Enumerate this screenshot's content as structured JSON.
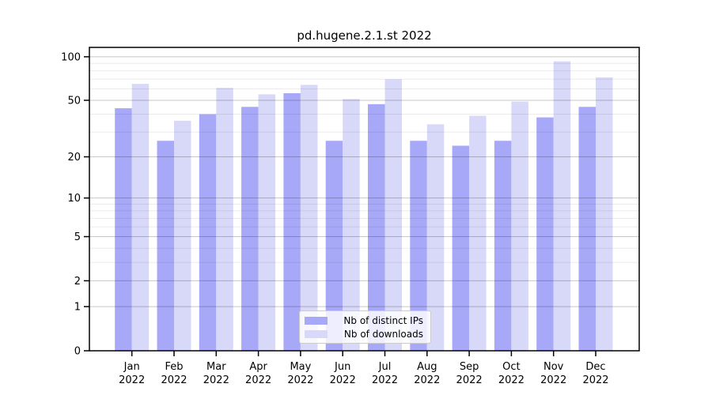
{
  "chart_data": {
    "type": "bar",
    "title": "pd.hugene.2.1.st 2022",
    "xlabel": "",
    "ylabel": "",
    "categories": [
      "Jan",
      "Feb",
      "Mar",
      "Apr",
      "May",
      "Jun",
      "Jul",
      "Aug",
      "Sep",
      "Oct",
      "Nov",
      "Dec"
    ],
    "x_year": "2022",
    "series": [
      {
        "name": "Nb of distinct IPs",
        "color": "#a8a8f8",
        "values": [
          44,
          26,
          40,
          45,
          56,
          26,
          47,
          26,
          24,
          26,
          38,
          45
        ]
      },
      {
        "name": "Nb of downloads",
        "color": "#d8d8f8",
        "values": [
          65,
          36,
          61,
          55,
          64,
          51,
          70,
          34,
          39,
          49,
          93,
          72
        ]
      }
    ],
    "y_scale": "log10(1+x)",
    "y_ticks": [
      0,
      1,
      2,
      5,
      10,
      20,
      50,
      100
    ],
    "y_minor_gridlines": [
      3,
      4,
      6,
      7,
      8,
      9,
      30,
      40,
      60,
      70,
      80,
      90
    ],
    "ylim": [
      0,
      116
    ],
    "grid": true,
    "legend_position": "lower center"
  },
  "colors": {
    "background": "#ffffff",
    "spine": "#000000",
    "tick_label": "#000000",
    "major_gridline": "rgba(0,0,0,0.22)",
    "minor_gridline": "rgba(0,0,0,0.08)",
    "legend_border": "#cccccc",
    "legend_background": "rgba(255,255,255,0.8)"
  }
}
